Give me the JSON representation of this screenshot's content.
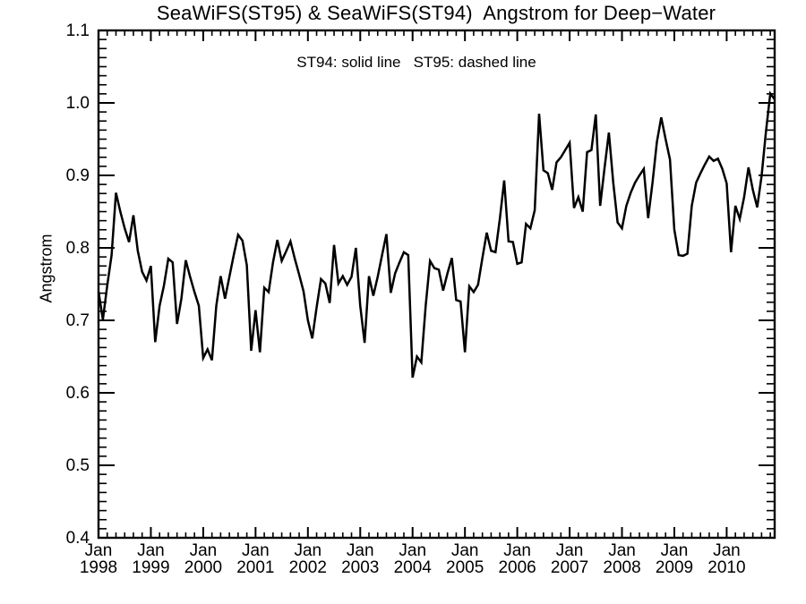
{
  "page": {
    "background": "#ffffff",
    "foreground": "#000000"
  },
  "chart_data": {
    "type": "line",
    "title": "SeaWiFS(ST95) & SeaWiFS(ST94)  Angstrom for Deep−Water",
    "annotation": "ST94: solid line   ST95: dashed line",
    "ylabel": "Angstrom",
    "xlabel": "",
    "ylim": [
      0.4,
      1.1
    ],
    "y_tick_labels": [
      "0.4",
      "0.5",
      "0.6",
      "0.7",
      "0.8",
      "0.9",
      "1.0",
      "1.1"
    ],
    "y_tick_step": 0.1,
    "y_minor_divisions": 8,
    "grid": false,
    "legend_position": "top-center-text",
    "line_color": "#000000",
    "x_axis": {
      "major_tick_month": "Jan",
      "year_labels": [
        "1998",
        "1999",
        "2000",
        "2001",
        "2002",
        "2003",
        "2004",
        "2005",
        "2006",
        "2007",
        "2008",
        "2009",
        "2010"
      ],
      "minor_tick_interval_months": 2,
      "start": "1998-01",
      "end": "2010-12"
    },
    "series": [
      {
        "name": "ST94",
        "style": "solid",
        "cadence": "monthly",
        "start": "1998-01",
        "values": [
          0.74,
          0.701,
          0.748,
          0.79,
          0.876,
          0.85,
          0.827,
          0.808,
          0.845,
          0.796,
          0.767,
          0.755,
          0.775,
          0.67,
          0.72,
          0.748,
          0.785,
          0.78,
          0.695,
          0.73,
          0.783,
          0.76,
          0.739,
          0.72,
          0.648,
          0.66,
          0.645,
          0.72,
          0.761,
          0.73,
          0.76,
          0.79,
          0.818,
          0.81,
          0.776,
          0.658,
          0.714,
          0.656,
          0.745,
          0.739,
          0.78,
          0.811,
          0.782,
          0.795,
          0.809,
          0.785,
          0.763,
          0.74,
          0.7,
          0.675,
          0.718,
          0.757,
          0.751,
          0.724,
          0.804,
          0.751,
          0.761,
          0.749,
          0.76,
          0.8,
          0.72,
          0.669,
          0.761,
          0.734,
          0.76,
          0.79,
          0.819,
          0.738,
          0.765,
          0.78,
          0.794,
          0.79,
          0.621,
          0.65,
          0.642,
          0.72,
          0.782,
          0.772,
          0.77,
          0.741,
          0.765,
          0.786,
          0.728,
          0.726,
          0.656,
          0.747,
          0.739,
          0.749,
          0.786,
          0.821,
          0.796,
          0.794,
          0.84,
          0.893,
          0.809,
          0.808,
          0.778,
          0.78,
          0.833,
          0.827,
          0.852,
          0.985,
          0.907,
          0.903,
          0.88,
          0.918,
          0.925,
          0.935,
          0.945,
          0.855,
          0.87,
          0.85,
          0.932,
          0.935,
          0.984,
          0.858,
          0.91,
          0.959,
          0.89,
          0.835,
          0.827,
          0.858,
          0.876,
          0.89,
          0.9,
          0.909,
          0.841,
          0.89,
          0.946,
          0.98,
          0.95,
          0.922,
          0.825,
          0.79,
          0.789,
          0.792,
          0.858,
          0.89,
          0.903,
          0.915,
          0.926,
          0.92,
          0.923,
          0.909,
          0.889,
          0.794,
          0.858,
          0.84,
          0.87,
          0.911,
          0.88,
          0.856,
          0.899,
          0.96,
          1.013,
          1.005
        ]
      }
    ]
  }
}
